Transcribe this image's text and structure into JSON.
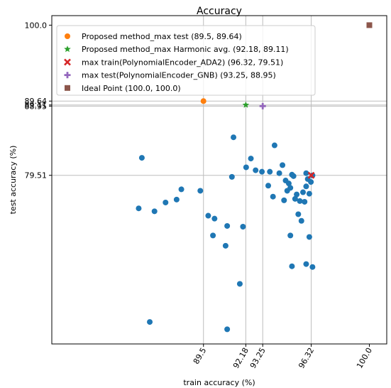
{
  "chart_data": {
    "type": "scatter",
    "title": "Accuracy",
    "xlabel": "train accuracy (%)",
    "ylabel": "test accuracy (%)",
    "xlim": [
      79.9,
      101.1
    ],
    "ylim": [
      56.5,
      101.3
    ],
    "x_ticks": [
      89.5,
      92.18,
      93.25,
      96.32,
      100.0
    ],
    "x_tick_labels": [
      "89.5",
      "92.18",
      "93.25",
      "96.32",
      "100.0"
    ],
    "y_ticks": [
      79.51,
      88.95,
      89.11,
      89.64,
      100.0
    ],
    "y_tick_labels": [
      "79.51",
      "88.95",
      "89.11",
      "89.64",
      "100.0"
    ],
    "reference_lines": {
      "x": [
        89.5,
        92.18,
        93.25,
        96.32
      ],
      "y": [
        89.64,
        89.11,
        88.95,
        79.51
      ]
    },
    "series": [
      {
        "type": "scatter",
        "color": "#1f77b4",
        "points": [
          [
            85.6,
            81.9
          ],
          [
            86.1,
            59.5
          ],
          [
            85.4,
            75.0
          ],
          [
            86.4,
            74.6
          ],
          [
            87.1,
            75.8
          ],
          [
            87.8,
            76.2
          ],
          [
            88.1,
            77.6
          ],
          [
            89.3,
            77.4
          ],
          [
            90.1,
            71.3
          ],
          [
            90.2,
            73.6
          ],
          [
            89.8,
            74.0
          ],
          [
            90.9,
            69.9
          ],
          [
            91.0,
            72.6
          ],
          [
            91.0,
            58.5
          ],
          [
            91.4,
            84.7
          ],
          [
            91.8,
            64.7
          ],
          [
            92.0,
            72.5
          ],
          [
            92.5,
            81.8
          ],
          [
            92.8,
            80.2
          ],
          [
            93.2,
            80.0
          ],
          [
            93.6,
            78.1
          ],
          [
            93.9,
            76.6
          ],
          [
            94.0,
            83.6
          ],
          [
            94.3,
            79.8
          ],
          [
            94.6,
            76.1
          ],
          [
            94.7,
            78.8
          ],
          [
            94.8,
            77.4
          ],
          [
            95.0,
            77.8
          ],
          [
            95.2,
            79.4
          ],
          [
            95.3,
            76.3
          ],
          [
            95.5,
            74.2
          ],
          [
            95.6,
            76.0
          ],
          [
            95.7,
            73.3
          ],
          [
            95.9,
            75.9
          ],
          [
            96.0,
            79.8
          ],
          [
            96.0,
            78.0
          ],
          [
            96.2,
            77.0
          ],
          [
            96.3,
            78.6
          ],
          [
            96.4,
            79.5
          ],
          [
            96.1,
            79.0
          ],
          [
            95.8,
            77.2
          ],
          [
            94.5,
            80.9
          ],
          [
            95.1,
            79.6
          ],
          [
            95.4,
            76.9
          ],
          [
            94.9,
            78.4
          ],
          [
            91.3,
            79.3
          ],
          [
            92.2,
            80.6
          ],
          [
            93.7,
            80.0
          ],
          [
            95.0,
            71.3
          ],
          [
            96.2,
            71.1
          ],
          [
            96.0,
            67.4
          ],
          [
            95.1,
            67.1
          ],
          [
            96.4,
            67.0
          ]
        ]
      },
      {
        "name": "Proposed method_max test  (89.5, 89.64)",
        "type": "scatter",
        "marker": "circle",
        "color": "#ff7f0e",
        "points": [
          [
            89.5,
            89.64
          ]
        ]
      },
      {
        "name": "Proposed method_max Harmonic avg.  (92.18, 89.11)",
        "type": "scatter",
        "marker": "star",
        "color": "#2ca02c",
        "points": [
          [
            92.18,
            89.11
          ]
        ]
      },
      {
        "name": "max train(PolynomialEncoder_ADA2)  (96.32, 79.51)",
        "type": "scatter",
        "marker": "x",
        "color": "#d62728",
        "points": [
          [
            96.32,
            79.51
          ]
        ]
      },
      {
        "name": "max test(PolynomialEncoder_GNB)  (93.25, 88.95)",
        "type": "scatter",
        "marker": "plus",
        "color": "#9467bd",
        "points": [
          [
            93.25,
            88.95
          ]
        ]
      },
      {
        "name": "Ideal Point  (100.0, 100.0)",
        "type": "scatter",
        "marker": "square",
        "color": "#8c564b",
        "points": [
          [
            100.0,
            100.0
          ]
        ]
      }
    ],
    "legend_position": "top-left",
    "grid": false
  }
}
